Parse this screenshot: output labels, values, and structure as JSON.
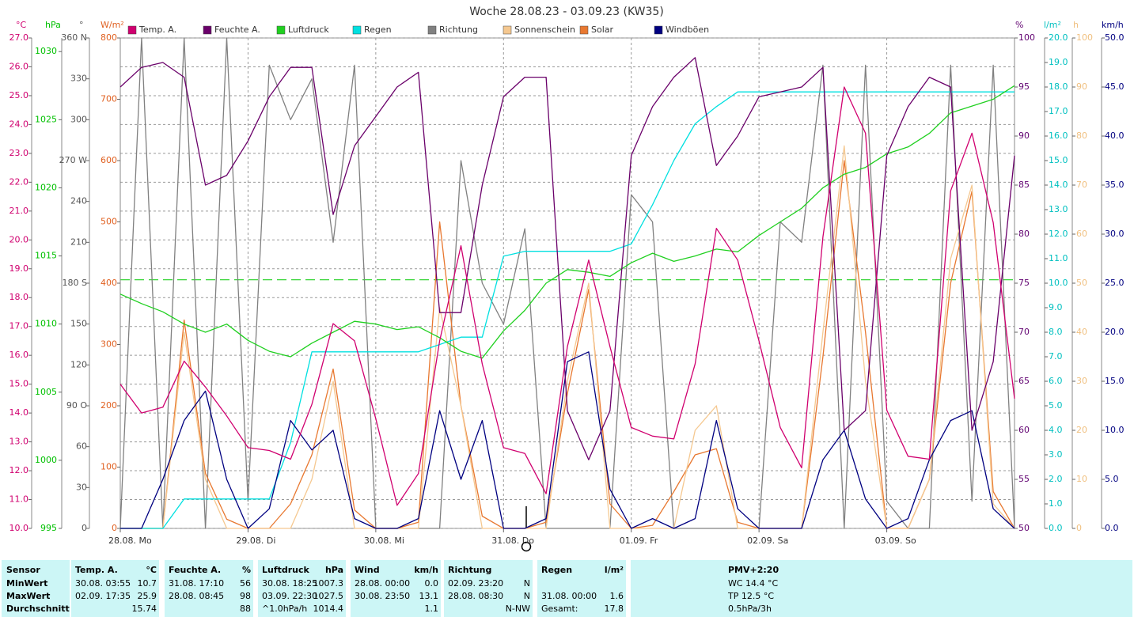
{
  "chart_data": {
    "type": "line",
    "title": "Woche 28.08.23 - 03.09.23 (KW35)",
    "legend": "top",
    "grid": true,
    "categories": [
      "28.08. Mo",
      null,
      null,
      null,
      null,
      null,
      "29.08. Di",
      null,
      null,
      null,
      null,
      null,
      "30.08. Mi",
      null,
      null,
      null,
      null,
      null,
      "31.08. Do",
      null,
      null,
      null,
      null,
      null,
      "01.09. Fr",
      null,
      null,
      null,
      null,
      null,
      "02.09. Sa",
      null,
      null,
      null,
      null,
      null,
      "03.09. So",
      null,
      null,
      null,
      null,
      null,
      null
    ],
    "axes": [
      {
        "unit": "°C",
        "side": "left",
        "color": "#d0006f",
        "ylim": [
          10,
          27
        ],
        "yticks": [
          {
            "value": 10,
            "label": "10.0"
          },
          {
            "value": 11,
            "label": "11.0"
          },
          {
            "value": 12,
            "label": "12.0"
          },
          {
            "value": 13,
            "label": "13.0"
          },
          {
            "value": 14,
            "label": "14.0"
          },
          {
            "value": 15,
            "label": "15.0"
          },
          {
            "value": 16,
            "label": "16.0"
          },
          {
            "value": 17,
            "label": "17.0"
          },
          {
            "value": 18,
            "label": "18.0"
          },
          {
            "value": 19,
            "label": "19.0"
          },
          {
            "value": 20,
            "label": "20.0"
          },
          {
            "value": 21,
            "label": "21.0"
          },
          {
            "value": 22,
            "label": "22.0"
          },
          {
            "value": 23,
            "label": "23.0"
          },
          {
            "value": 24,
            "label": "24.0"
          },
          {
            "value": 25,
            "label": "25.0"
          },
          {
            "value": 26,
            "label": "26.0"
          },
          {
            "value": 27,
            "label": "27.0"
          }
        ],
        "series": {
          "name": "Temp. A.",
          "color": "#d0006f",
          "values": [
            15.0,
            14.0,
            14.2,
            15.8,
            14.9,
            13.9,
            12.8,
            12.7,
            12.4,
            14.3,
            17.1,
            16.5,
            13.8,
            10.8,
            11.9,
            16.5,
            19.8,
            15.7,
            12.8,
            12.6,
            11.2,
            16.3,
            19.3,
            16.3,
            13.5,
            13.2,
            13.1,
            15.7,
            20.4,
            19.3,
            16.5,
            13.5,
            12.1,
            20.1,
            25.3,
            23.7,
            14.1,
            12.5,
            12.4,
            21.7,
            23.7,
            20.6,
            14.5
          ]
        }
      },
      {
        "unit": "%",
        "side": "right",
        "color": "#600070",
        "ylim": [
          50,
          100
        ],
        "yticks": [
          50,
          55,
          60,
          65,
          70,
          75,
          80,
          85,
          90,
          95,
          100
        ],
        "series": {
          "name": "Feuchte A.",
          "color": "#6a006a",
          "values": [
            95,
            97,
            97.5,
            96,
            85,
            86,
            89.5,
            94,
            97,
            97,
            82,
            89,
            92,
            95,
            96.5,
            72,
            72,
            85,
            94,
            96,
            96,
            62,
            57,
            62,
            88,
            93,
            96,
            98,
            87,
            90,
            94,
            94.5,
            95,
            97,
            60,
            62,
            88,
            93,
            96,
            95,
            60,
            67,
            88
          ]
        }
      },
      {
        "unit": "hPa",
        "side": "left",
        "color": "#00c000",
        "ylim": [
          995,
          1031
        ],
        "yticks": [
          995,
          1000,
          1005,
          1010,
          1015,
          1020,
          1025,
          1030
        ],
        "reference": 1013.25,
        "series": {
          "name": "Luftdruck",
          "color": "#20d020",
          "values": [
            1012.2,
            1011.5,
            1010.9,
            1010,
            1009.4,
            1010,
            1008.8,
            1008,
            1007.6,
            1008.6,
            1009.4,
            1010.2,
            1010,
            1009.6,
            1009.8,
            1009,
            1008,
            1007.5,
            1009.5,
            1011,
            1013,
            1014,
            1013.8,
            1013.5,
            1014.5,
            1015.2,
            1014.6,
            1015,
            1015.5,
            1015.3,
            1016.5,
            1017.5,
            1018.5,
            1020,
            1021,
            1021.5,
            1022.5,
            1023,
            1024,
            1025.5,
            1026,
            1026.5,
            1027.5
          ]
        }
      },
      {
        "unit": "l/m²",
        "side": "right",
        "color": "#00c0c0",
        "ylim": [
          0,
          20
        ],
        "yticks": [
          {
            "value": 0,
            "label": "0.0"
          },
          {
            "value": 1,
            "label": "1.0"
          },
          {
            "value": 2,
            "label": "2.0"
          },
          {
            "value": 3,
            "label": "3.0"
          },
          {
            "value": 4,
            "label": "4.0"
          },
          {
            "value": 5,
            "label": "5.0"
          },
          {
            "value": 6,
            "label": "6.0"
          },
          {
            "value": 7,
            "label": "7.0"
          },
          {
            "value": 8,
            "label": "8.0"
          },
          {
            "value": 9,
            "label": "9.0"
          },
          {
            "value": 10,
            "label": "10.0"
          },
          {
            "value": 11,
            "label": "11.0"
          },
          {
            "value": 12,
            "label": "12.0"
          },
          {
            "value": 13,
            "label": "13.0"
          },
          {
            "value": 14,
            "label": "14.0"
          },
          {
            "value": 15,
            "label": "15.0"
          },
          {
            "value": 16,
            "label": "16.0"
          },
          {
            "value": 17,
            "label": "17.0"
          },
          {
            "value": 18,
            "label": "18.0"
          },
          {
            "value": 19,
            "label": "19.0"
          },
          {
            "value": 20,
            "label": "20.0"
          }
        ],
        "series": {
          "name": "Regen",
          "color": "#00e0e0",
          "values": [
            0,
            0,
            0,
            1.2,
            1.2,
            1.2,
            1.2,
            1.2,
            3.5,
            7.2,
            7.2,
            7.2,
            7.2,
            7.2,
            7.2,
            7.5,
            7.8,
            7.8,
            11.1,
            11.3,
            11.3,
            11.3,
            11.3,
            11.3,
            11.6,
            13.2,
            15.0,
            16.5,
            17.2,
            17.8,
            17.8,
            17.8,
            17.8,
            17.8,
            17.8,
            17.8,
            17.8,
            17.8,
            17.8,
            17.8,
            17.8,
            17.8,
            17.8
          ]
        }
      },
      {
        "unit": "°",
        "side": "left",
        "color": "#555555",
        "ylim": [
          0,
          360
        ],
        "yticks": [
          0,
          30,
          60,
          {
            "value": 90,
            "label": "90 O"
          },
          120,
          150,
          {
            "value": 180,
            "label": "180 S"
          },
          210,
          240,
          {
            "value": 270,
            "label": "270 W"
          },
          300,
          330,
          {
            "value": 360,
            "label": "360 N"
          }
        ],
        "series": {
          "name": "Richtung",
          "color": "#808080",
          "values": [
            0,
            360,
            0,
            360,
            0,
            360,
            20,
            340,
            300,
            330,
            210,
            340,
            0,
            0,
            0,
            0,
            270,
            180,
            150,
            220,
            0,
            0,
            0,
            0,
            245,
            225,
            0,
            0,
            0,
            0,
            0,
            225,
            210,
            340,
            0,
            340,
            20,
            0,
            0,
            340,
            20,
            340,
            0
          ]
        }
      },
      {
        "unit": "h",
        "side": "right",
        "color": "#f0c080",
        "ylim": [
          0,
          100
        ],
        "yticks": [
          0,
          10,
          20,
          30,
          40,
          50,
          60,
          70,
          80,
          90,
          100
        ],
        "series": {
          "name": "Sonnenschein",
          "color": "#f5c890",
          "values": [
            0,
            0,
            0,
            40,
            10,
            0,
            0,
            0,
            0,
            10,
            30,
            0,
            0,
            0,
            0,
            45,
            25,
            0,
            0,
            0,
            0,
            30,
            50,
            0,
            0,
            0,
            0,
            20,
            25,
            0,
            0,
            0,
            0,
            40,
            78,
            30,
            0,
            0,
            10,
            55,
            70,
            5,
            0
          ]
        }
      },
      {
        "unit": "W/m²",
        "side": "left",
        "color": "#e06020",
        "ylim": [
          0,
          800
        ],
        "yticks": [
          0,
          100,
          200,
          300,
          400,
          500,
          600,
          700,
          800
        ],
        "series": {
          "name": "Solar",
          "color": "#e87830",
          "values": [
            0,
            0,
            0,
            340,
            90,
            15,
            0,
            0,
            40,
            120,
            260,
            30,
            0,
            0,
            10,
            500,
            200,
            20,
            0,
            0,
            10,
            220,
            390,
            40,
            0,
            5,
            60,
            120,
            130,
            10,
            0,
            0,
            0,
            280,
            600,
            320,
            0,
            0,
            80,
            400,
            550,
            60,
            0
          ]
        }
      },
      {
        "unit": "km/h",
        "side": "right",
        "color": "#000080",
        "ylim": [
          0,
          50
        ],
        "yticks": [
          {
            "value": 0,
            "label": "0.0"
          },
          {
            "value": 5,
            "label": "5.0"
          },
          {
            "value": 10,
            "label": "10.0"
          },
          {
            "value": 15,
            "label": "15.0"
          },
          {
            "value": 20,
            "label": "20.0"
          },
          {
            "value": 25,
            "label": "25.0"
          },
          {
            "value": 30,
            "label": "30.0"
          },
          {
            "value": 35,
            "label": "35.0"
          },
          {
            "value": 40,
            "label": "40.0"
          },
          {
            "value": 45,
            "label": "45.0"
          },
          {
            "value": 50,
            "label": "50.0"
          }
        ],
        "series": {
          "name": "Windböen",
          "color": "#000080",
          "values": [
            0,
            0,
            5,
            11,
            14,
            5,
            0,
            2,
            11,
            8,
            10,
            1,
            0,
            0,
            1,
            12,
            5,
            11,
            0,
            0,
            1,
            17,
            18,
            4,
            0,
            1,
            0,
            1,
            11,
            2,
            0,
            0,
            0,
            7,
            10,
            3,
            0,
            1,
            7,
            11,
            12,
            2,
            0
          ]
        }
      }
    ]
  },
  "stats": {
    "header": {
      "label": "Sensor",
      "columns": [
        {
          "left": "Temp. A.",
          "right": "°C"
        },
        {
          "left": "Feuchte A.",
          "right": "%"
        },
        {
          "left": "Luftdruck",
          "right": "hPa"
        },
        {
          "left": "Wind",
          "right": "km/h"
        },
        {
          "left": "Richtung"
        },
        {
          "left": "Regen",
          "right": "l/m²"
        },
        {
          "left": "PMV+2:20"
        }
      ]
    },
    "rows": [
      {
        "label": "MinWert",
        "cells": [
          {
            "left": "30.08. 03:55",
            "right": "10.7"
          },
          {
            "left": "31.08. 17:10",
            "right": "56"
          },
          {
            "left": "30.08. 18:25",
            "right": "1007.3"
          },
          {
            "left": "28.08. 00:00",
            "right": "0.0"
          },
          {
            "left": "02.09. 23:20",
            "right": "N"
          },
          {},
          {
            "left": "WC 14.4 °C"
          }
        ]
      },
      {
        "label": "MaxWert",
        "cells": [
          {
            "left": "02.09. 17:35",
            "right": "25.9"
          },
          {
            "left": "28.08. 08:45",
            "right": "98"
          },
          {
            "left": "03.09. 22:30",
            "right": "1027.5"
          },
          {
            "left": "30.08. 23:50",
            "right": "13.1"
          },
          {
            "left": "28.08. 08:30",
            "right": "N"
          },
          {
            "left": "31.08. 00:00",
            "right": "1.6"
          },
          {
            "left": "TP 12.5 °C"
          }
        ]
      },
      {
        "label": "Durchschnitt",
        "cells": [
          {
            "right": "15.74"
          },
          {
            "right": "88"
          },
          {
            "left": "^1.0hPa/h",
            "right": "1014.4"
          },
          {
            "right": "1.1"
          },
          {
            "right": "N-NW"
          },
          {
            "left": "Gesamt:",
            "right": "17.8"
          },
          {
            "left": "0.5hPa/3h"
          }
        ]
      }
    ]
  }
}
